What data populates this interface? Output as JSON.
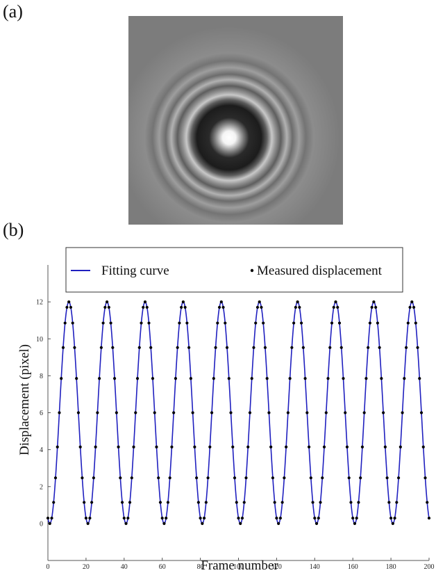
{
  "panels": {
    "a_label": "(a)",
    "b_label": "(b)"
  },
  "diffraction_image": {
    "background_color": "#7c7c7c",
    "description_icon": "diffraction-ring-pattern"
  },
  "chart_data": {
    "type": "line",
    "xlabel": "Frame number",
    "ylabel": "Displacement (pixel)",
    "xlim": [
      0,
      200
    ],
    "ylim": [
      -2,
      14
    ],
    "x_ticks": [
      0,
      20,
      40,
      60,
      80,
      100,
      120,
      140,
      160,
      180,
      200
    ],
    "y_ticks": [
      0,
      2,
      4,
      6,
      8,
      10,
      12
    ],
    "grid": false,
    "legend_position": "top",
    "series": [
      {
        "name": "Fitting curve",
        "kind": "line",
        "color": "#1f1fbf",
        "model": {
          "amplitude": 6,
          "offset": 6,
          "period_frames": 20,
          "first_peak_frame": 11,
          "x_start": 0,
          "x_end": 200
        }
      },
      {
        "name": "Measured displacement",
        "kind": "scatter",
        "color": "#000000",
        "sampling": {
          "x_start": 0,
          "x_end": 200,
          "step_frames": 1
        }
      }
    ]
  }
}
